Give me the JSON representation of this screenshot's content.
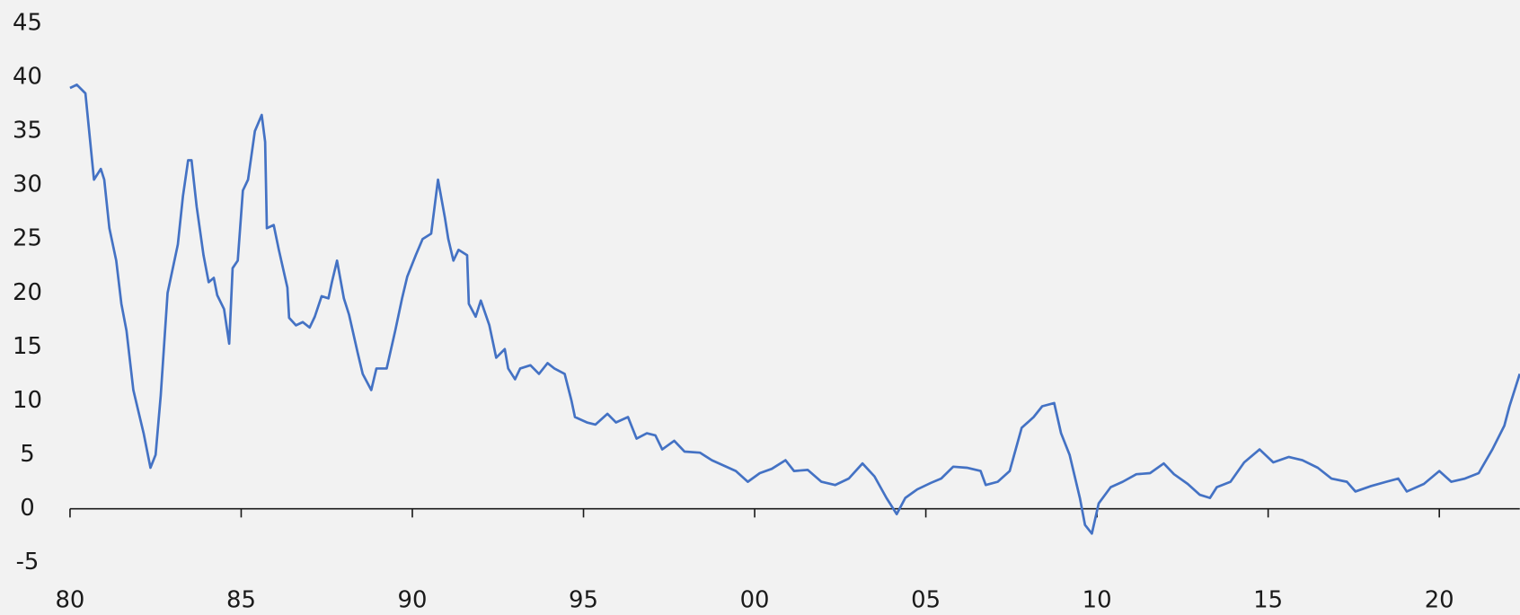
{
  "chart_data": {
    "type": "line",
    "x": [
      1980.0,
      1980.2,
      1980.45,
      1980.7,
      1980.9,
      1981.0,
      1981.15,
      1981.35,
      1981.5,
      1981.65,
      1981.85,
      1982.0,
      1982.15,
      1982.35,
      1982.5,
      1982.65,
      1982.85,
      1983.15,
      1983.3,
      1983.45,
      1983.55,
      1983.7,
      1983.9,
      1984.05,
      1984.2,
      1984.3,
      1984.5,
      1984.65,
      1984.75,
      1984.9,
      1985.05,
      1985.2,
      1985.4,
      1985.6,
      1985.7,
      1985.75,
      1985.95,
      1986.1,
      1986.35,
      1986.4,
      1986.6,
      1986.8,
      1987.0,
      1987.15,
      1987.35,
      1987.55,
      1987.65,
      1987.8,
      1988.0,
      1988.15,
      1988.4,
      1988.55,
      1988.8,
      1988.95,
      1989.25,
      1989.5,
      1989.7,
      1989.85,
      1990.1,
      1990.3,
      1990.55,
      1990.75,
      1990.95,
      1991.05,
      1991.2,
      1991.35,
      1991.6,
      1991.65,
      1991.85,
      1992.0,
      1992.25,
      1992.45,
      1992.7,
      1992.8,
      1993.0,
      1993.15,
      1993.45,
      1993.7,
      1993.95,
      1994.15,
      1994.45,
      1994.65,
      1994.75,
      1995.1,
      1995.35,
      1995.7,
      1995.95,
      1996.3,
      1996.55,
      1996.85,
      1997.1,
      1997.3,
      1997.65,
      1997.95,
      1998.4,
      1998.75,
      1999.1,
      1999.45,
      1999.8,
      2000.15,
      2000.5,
      2000.9,
      2001.15,
      2001.55,
      2001.95,
      2002.35,
      2002.75,
      2003.15,
      2003.5,
      2003.85,
      2004.15,
      2004.4,
      2004.75,
      2005.15,
      2005.45,
      2005.8,
      2006.2,
      2006.6,
      2006.75,
      2007.1,
      2007.45,
      2007.8,
      2008.15,
      2008.4,
      2008.75,
      2008.95,
      2009.2,
      2009.5,
      2009.65,
      2009.85,
      2010.05,
      2010.4,
      2010.75,
      2011.15,
      2011.55,
      2011.95,
      2012.25,
      2012.65,
      2013.0,
      2013.3,
      2013.5,
      2013.9,
      2014.3,
      2014.75,
      2015.15,
      2015.6,
      2016.0,
      2016.45,
      2016.85,
      2017.3,
      2017.55,
      2018.0,
      2018.45,
      2018.8,
      2019.05,
      2019.55,
      2020.0,
      2020.35,
      2020.75,
      2021.15,
      2021.55,
      2021.9,
      2022.05,
      2022.35
    ],
    "series": [
      {
        "color": "#4472c4",
        "values": [
          39,
          39.3,
          38.5,
          30.5,
          31.5,
          30.5,
          26,
          23,
          19,
          16.5,
          11,
          9,
          7,
          3.8,
          5,
          10.5,
          20,
          24.5,
          29,
          32.3,
          32.3,
          28,
          23.5,
          21,
          21.4,
          19.8,
          18.5,
          15.3,
          22.3,
          23,
          29.5,
          30.5,
          35,
          36.5,
          34,
          26,
          26.3,
          24,
          20.5,
          17.7,
          17,
          17.3,
          16.8,
          17.8,
          19.7,
          19.5,
          21,
          23,
          19.5,
          18,
          14.5,
          12.5,
          11,
          13,
          13,
          16.5,
          19.5,
          21.5,
          23.5,
          25,
          25.5,
          30.5,
          27,
          25,
          23,
          24,
          23.5,
          19,
          17.8,
          19.3,
          17,
          14,
          14.8,
          13,
          12,
          13,
          13.3,
          12.5,
          13.5,
          13,
          12.5,
          10,
          8.5,
          8,
          7.8,
          8.8,
          8,
          8.5,
          6.5,
          7,
          6.8,
          5.5,
          6.3,
          5.3,
          5.2,
          4.5,
          4,
          3.5,
          2.5,
          3.3,
          3.7,
          4.5,
          3.5,
          3.6,
          2.5,
          2.2,
          2.8,
          4.2,
          3,
          1,
          -0.5,
          1,
          1.8,
          2.4,
          2.8,
          3.9,
          3.8,
          3.5,
          2.2,
          2.5,
          3.5,
          7.5,
          8.5,
          9.5,
          9.8,
          7,
          5,
          1,
          -1.5,
          -2.3,
          0.5,
          2,
          2.5,
          3.2,
          3.3,
          4.2,
          3.2,
          2.3,
          1.3,
          1,
          2,
          2.5,
          4.3,
          5.5,
          4.3,
          4.8,
          4.5,
          3.8,
          2.8,
          2.5,
          1.6,
          2.1,
          2.5,
          2.8,
          1.6,
          2.3,
          3.5,
          2.5,
          2.8,
          3.3,
          5.5,
          7.7,
          9.5,
          12.5
        ]
      }
    ],
    "xlim": [
      1980,
      2022.35
    ],
    "xticks": [
      {
        "value": 1980,
        "label": "80"
      },
      {
        "value": 1985,
        "label": "85"
      },
      {
        "value": 1990,
        "label": "90"
      },
      {
        "value": 1995,
        "label": "95"
      },
      {
        "value": 2000,
        "label": "00"
      },
      {
        "value": 2005,
        "label": "05"
      },
      {
        "value": 2010,
        "label": "10"
      },
      {
        "value": 2015,
        "label": "15"
      },
      {
        "value": 2020,
        "label": "20"
      }
    ],
    "ylim": [
      -5,
      45
    ],
    "yticks": [
      -5,
      0,
      5,
      10,
      15,
      20,
      25,
      30,
      35,
      40,
      45
    ],
    "grid": false
  }
}
